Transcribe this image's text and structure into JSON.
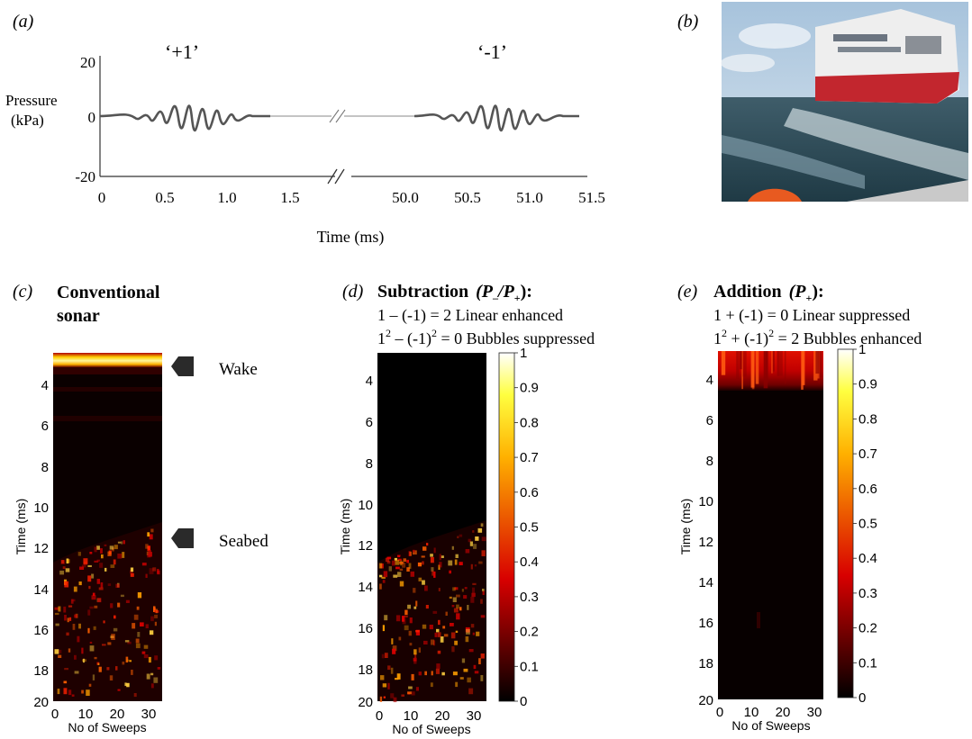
{
  "panel_a": {
    "label": "(a)",
    "pulse_pos_label": "‘+1’",
    "pulse_neg_label": "‘-1’",
    "ylabel_line1": "Pressure",
    "ylabel_line2": "(kPa)",
    "y_ticks": [
      "20",
      "0",
      "-20"
    ],
    "x_ticks_left": [
      "0",
      "0.5",
      "1.0",
      "1.5"
    ],
    "x_ticks_right": [
      "50.0",
      "50.5",
      "51.0",
      "51.5"
    ],
    "xlabel": "Time (ms)",
    "chart_data": {
      "type": "line",
      "ylim": [
        -20,
        20
      ],
      "series": [
        {
          "pulse": "+1",
          "x_ms": [
            0.0,
            0.3,
            0.5,
            0.6,
            0.7,
            0.8,
            0.9,
            1.1,
            1.3
          ],
          "y_kPa": [
            0,
            2,
            10,
            -12,
            14,
            -12,
            10,
            3,
            0
          ]
        },
        {
          "pulse": "-1",
          "x_ms": [
            50.0,
            50.3,
            50.5,
            50.6,
            50.7,
            50.8,
            50.9,
            51.1,
            51.3
          ],
          "y_kPa": [
            0,
            -2,
            -10,
            12,
            -14,
            12,
            -10,
            -3,
            0
          ]
        }
      ]
    }
  },
  "panel_b": {
    "label": "(b)"
  },
  "panel_c": {
    "label": "(c)",
    "title_line1": "Conventional",
    "title_line2": "sonar",
    "arrow_wake": "Wake",
    "arrow_seabed": "Seabed",
    "ylabel": "Time (ms)",
    "y_ticks": [
      "4",
      "6",
      "8",
      "10",
      "12",
      "14",
      "16",
      "18",
      "20"
    ],
    "x_ticks": [
      "0",
      "10",
      "20",
      "30"
    ],
    "xlabel": "No of Sweeps",
    "chart_data": {
      "type": "heatmap",
      "x_range": [
        0,
        34
      ],
      "y_range_ms": [
        3,
        20
      ],
      "features": [
        {
          "region": "wake",
          "time_ms": [
            3,
            3.6
          ],
          "intensity": 1.0
        },
        {
          "region": "water column",
          "time_ms": [
            3.6,
            11.3
          ],
          "intensity": 0.05
        },
        {
          "region": "seabed",
          "time_ms": [
            11.3,
            20
          ],
          "intensity": 0.4
        }
      ]
    }
  },
  "panel_d": {
    "label": "(d)",
    "title": "Subtraction",
    "formula_p1": "(P",
    "formula_sub1": "–",
    "formula_p2": "/P",
    "formula_sub2": "+",
    "formula_end": "):",
    "eq1": "1 – (-1) = 2  Linear enhanced",
    "eq2_a": "1",
    "eq2_b": " – (-1)",
    "eq2_c": " = 0  Bubbles suppressed",
    "ylabel": "Time (ms)",
    "y_ticks": [
      "4",
      "6",
      "8",
      "10",
      "12",
      "14",
      "16",
      "18",
      "20"
    ],
    "x_ticks": [
      "0",
      "10",
      "20",
      "30"
    ],
    "xlabel": "No of Sweeps",
    "colorbar_ticks": [
      "1",
      "0.9",
      "0.8",
      "0.7",
      "0.6",
      "0.5",
      "0.4",
      "0.3",
      "0.2",
      "0.1",
      "0"
    ],
    "chart_data": {
      "type": "heatmap",
      "x_range": [
        0,
        34
      ],
      "y_range_ms": [
        3,
        20
      ],
      "color_range": [
        0,
        1
      ],
      "features": [
        {
          "region": "wake",
          "time_ms": [
            3,
            11
          ],
          "intensity": 0.0
        },
        {
          "region": "seabed",
          "time_ms": [
            11,
            20
          ],
          "intensity": 0.4
        }
      ]
    }
  },
  "panel_e": {
    "label": "(e)",
    "title": "Addition",
    "formula_p1": "(P",
    "formula_sub1": "+",
    "formula_end": "):",
    "eq1": "1 + (-1) = 0  Linear suppressed",
    "eq2_a": "1",
    "eq2_b": " + (-1)",
    "eq2_c": " = 2  Bubbles enhanced",
    "ylabel": "Time (ms)",
    "y_ticks": [
      "4",
      "6",
      "8",
      "10",
      "12",
      "14",
      "16",
      "18",
      "20"
    ],
    "x_ticks": [
      "0",
      "10",
      "20",
      "30"
    ],
    "xlabel": "No of Sweeps",
    "colorbar_ticks": [
      "1",
      "0.9",
      "0.8",
      "0.7",
      "0.6",
      "0.5",
      "0.4",
      "0.3",
      "0.2",
      "0.1",
      "0"
    ],
    "chart_data": {
      "type": "heatmap",
      "x_range": [
        0,
        34
      ],
      "y_range_ms": [
        3,
        20
      ],
      "color_range": [
        0,
        1
      ],
      "features": [
        {
          "region": "wake",
          "time_ms": [
            3,
            4.8
          ],
          "intensity": 0.6
        },
        {
          "region": "water column and seabed",
          "time_ms": [
            4.8,
            20
          ],
          "intensity": 0.02
        }
      ]
    }
  },
  "colors": {
    "hot_dark": "#0d0000",
    "hot_red": "#d40000",
    "hot_yellow": "#ffd700",
    "hot_white": "#ffffff",
    "arrow": "#2a2a2a"
  }
}
